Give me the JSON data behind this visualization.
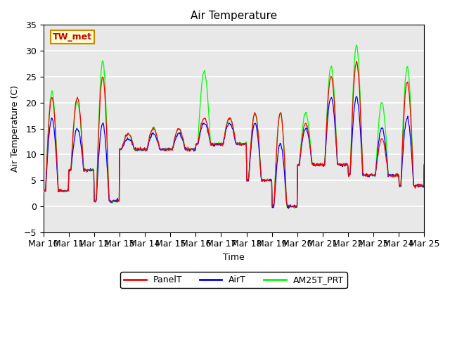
{
  "title": "Air Temperature",
  "xlabel": "Time",
  "ylabel": "Air Temperature (C)",
  "ylim": [
    -5,
    35
  ],
  "xlim": [
    0,
    360
  ],
  "background_color": "#e8e8e8",
  "grid_color": "white",
  "panel_color": "red",
  "air_color": "blue",
  "am25_color": "#00ff00",
  "annotation_text": "TW_met",
  "annotation_facecolor": "#ffffcc",
  "annotation_edgecolor": "#cc8800",
  "annotation_textcolor": "#cc0000",
  "legend_labels": [
    "PanelT",
    "AirT",
    "AM25T_PRT"
  ],
  "x_tick_labels": [
    "Mar 10",
    "Mar 11",
    "Mar 12",
    "Mar 13",
    "Mar 14",
    "Mar 15",
    "Mar 16",
    "Mar 17",
    "Mar 18",
    "Mar 19",
    "Mar 20",
    "Mar 21",
    "Mar 22",
    "Mar 23",
    "Mar 24",
    "Mar 25"
  ],
  "x_tick_positions": [
    0,
    24,
    48,
    72,
    96,
    120,
    144,
    168,
    192,
    216,
    240,
    264,
    288,
    312,
    336,
    360
  ],
  "yticks": [
    -5,
    0,
    5,
    10,
    15,
    20,
    25,
    30,
    35
  ],
  "figwidth": 6.4,
  "figheight": 4.8,
  "dpi": 100
}
